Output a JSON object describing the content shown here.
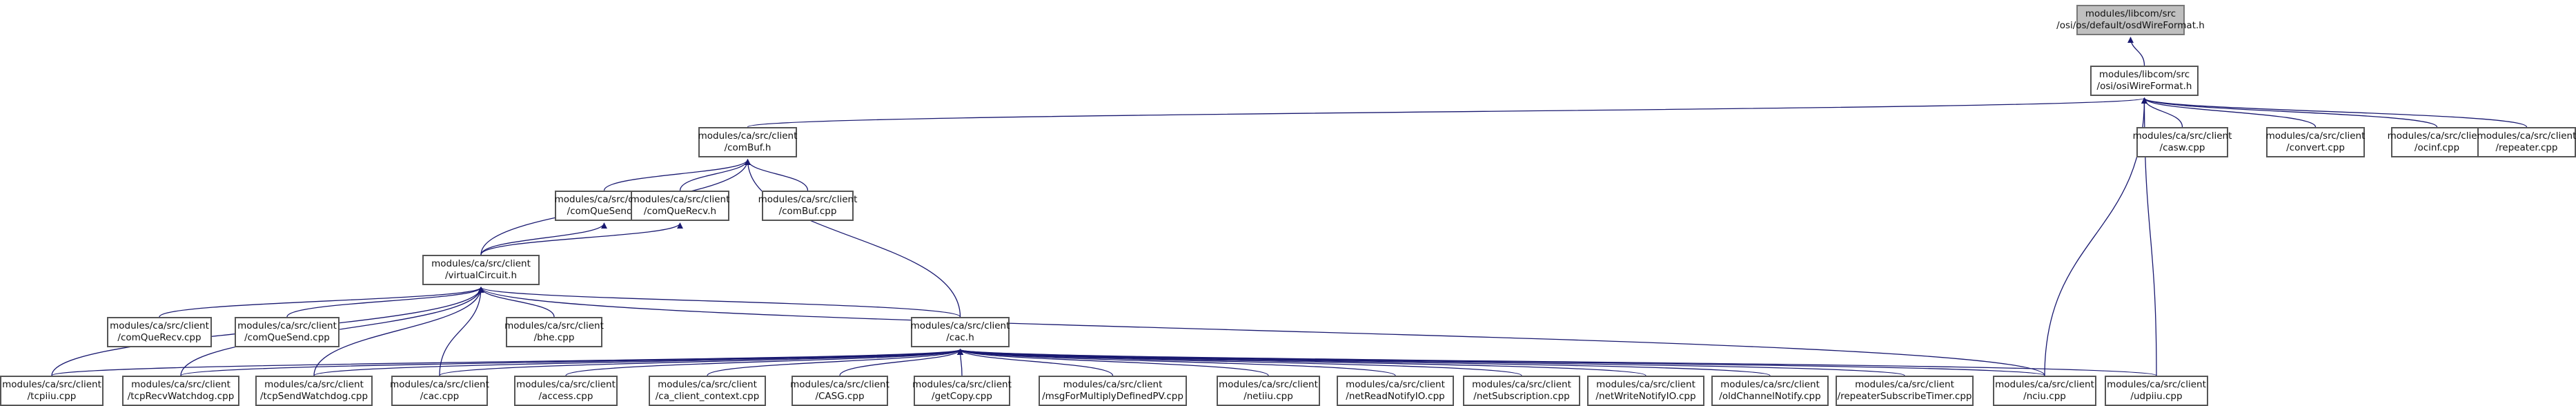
{
  "colors": {
    "edge": "#191970",
    "node_border": "#555555",
    "root_fill": "#bfbfbf",
    "background": "#ffffff"
  },
  "nodes": [
    {
      "id": "osdWireFormat",
      "lines": [
        "modules/libcom/src",
        "/osi/os/default/osdWireFormat.h"
      ],
      "root": true
    },
    {
      "id": "osiWireFormat",
      "lines": [
        "modules/libcom/src",
        "/osi/osiWireFormat.h"
      ]
    },
    {
      "id": "comBuf_h",
      "lines": [
        "modules/ca/src/client",
        "/comBuf.h"
      ]
    },
    {
      "id": "casw",
      "lines": [
        "modules/ca/src/client",
        "/casw.cpp"
      ]
    },
    {
      "id": "convert",
      "lines": [
        "modules/ca/src/client",
        "/convert.cpp"
      ]
    },
    {
      "id": "ocinf",
      "lines": [
        "modules/ca/src/client",
        "/ocinf.cpp"
      ]
    },
    {
      "id": "repeater",
      "lines": [
        "modules/ca/src/client",
        "/repeater.cpp"
      ]
    },
    {
      "id": "comQueSend_h",
      "lines": [
        "modules/ca/src/client",
        "/comQueSend.h"
      ]
    },
    {
      "id": "comQueRecv_h",
      "lines": [
        "modules/ca/src/client",
        "/comQueRecv.h"
      ]
    },
    {
      "id": "comBuf_cpp",
      "lines": [
        "modules/ca/src/client",
        "/comBuf.cpp"
      ]
    },
    {
      "id": "virtualCircuit",
      "lines": [
        "modules/ca/src/client",
        "/virtualCircuit.h"
      ]
    },
    {
      "id": "comQueRecv_cpp",
      "lines": [
        "modules/ca/src/client",
        "/comQueRecv.cpp"
      ]
    },
    {
      "id": "comQueSend_cpp",
      "lines": [
        "modules/ca/src/client",
        "/comQueSend.cpp"
      ]
    },
    {
      "id": "bhe",
      "lines": [
        "modules/ca/src/client",
        "/bhe.cpp"
      ]
    },
    {
      "id": "cac_h",
      "lines": [
        "modules/ca/src/client",
        "/cac.h"
      ]
    },
    {
      "id": "tcpiiu",
      "lines": [
        "modules/ca/src/client",
        "/tcpiiu.cpp"
      ]
    },
    {
      "id": "tcpRecvWatchdog",
      "lines": [
        "modules/ca/src/client",
        "/tcpRecvWatchdog.cpp"
      ]
    },
    {
      "id": "tcpSendWatchdog",
      "lines": [
        "modules/ca/src/client",
        "/tcpSendWatchdog.cpp"
      ]
    },
    {
      "id": "cac_cpp",
      "lines": [
        "modules/ca/src/client",
        "/cac.cpp"
      ]
    },
    {
      "id": "access",
      "lines": [
        "modules/ca/src/client",
        "/access.cpp"
      ]
    },
    {
      "id": "ca_client_context",
      "lines": [
        "modules/ca/src/client",
        "/ca_client_context.cpp"
      ]
    },
    {
      "id": "CASG",
      "lines": [
        "modules/ca/src/client",
        "/CASG.cpp"
      ]
    },
    {
      "id": "getCopy",
      "lines": [
        "modules/ca/src/client",
        "/getCopy.cpp"
      ]
    },
    {
      "id": "msgForMultiplyDefinedPV",
      "lines": [
        "modules/ca/src/client",
        "/msgForMultiplyDefinedPV.cpp"
      ]
    },
    {
      "id": "netiiu",
      "lines": [
        "modules/ca/src/client",
        "/netiiu.cpp"
      ]
    },
    {
      "id": "netReadNotifyIO",
      "lines": [
        "modules/ca/src/client",
        "/netReadNotifyIO.cpp"
      ]
    },
    {
      "id": "netSubscription",
      "lines": [
        "modules/ca/src/client",
        "/netSubscription.cpp"
      ]
    },
    {
      "id": "netWriteNotifyIO",
      "lines": [
        "modules/ca/src/client",
        "/netWriteNotifyIO.cpp"
      ]
    },
    {
      "id": "oldChannelNotify",
      "lines": [
        "modules/ca/src/client",
        "/oldChannelNotify.cpp"
      ]
    },
    {
      "id": "repeaterSubscribeTimer",
      "lines": [
        "modules/ca/src/client",
        "/repeaterSubscribeTimer.cpp"
      ]
    },
    {
      "id": "nciu",
      "lines": [
        "modules/ca/src/client",
        "/nciu.cpp"
      ]
    },
    {
      "id": "udpiiu",
      "lines": [
        "modules/ca/src/client",
        "/udpiiu.cpp"
      ]
    }
  ]
}
